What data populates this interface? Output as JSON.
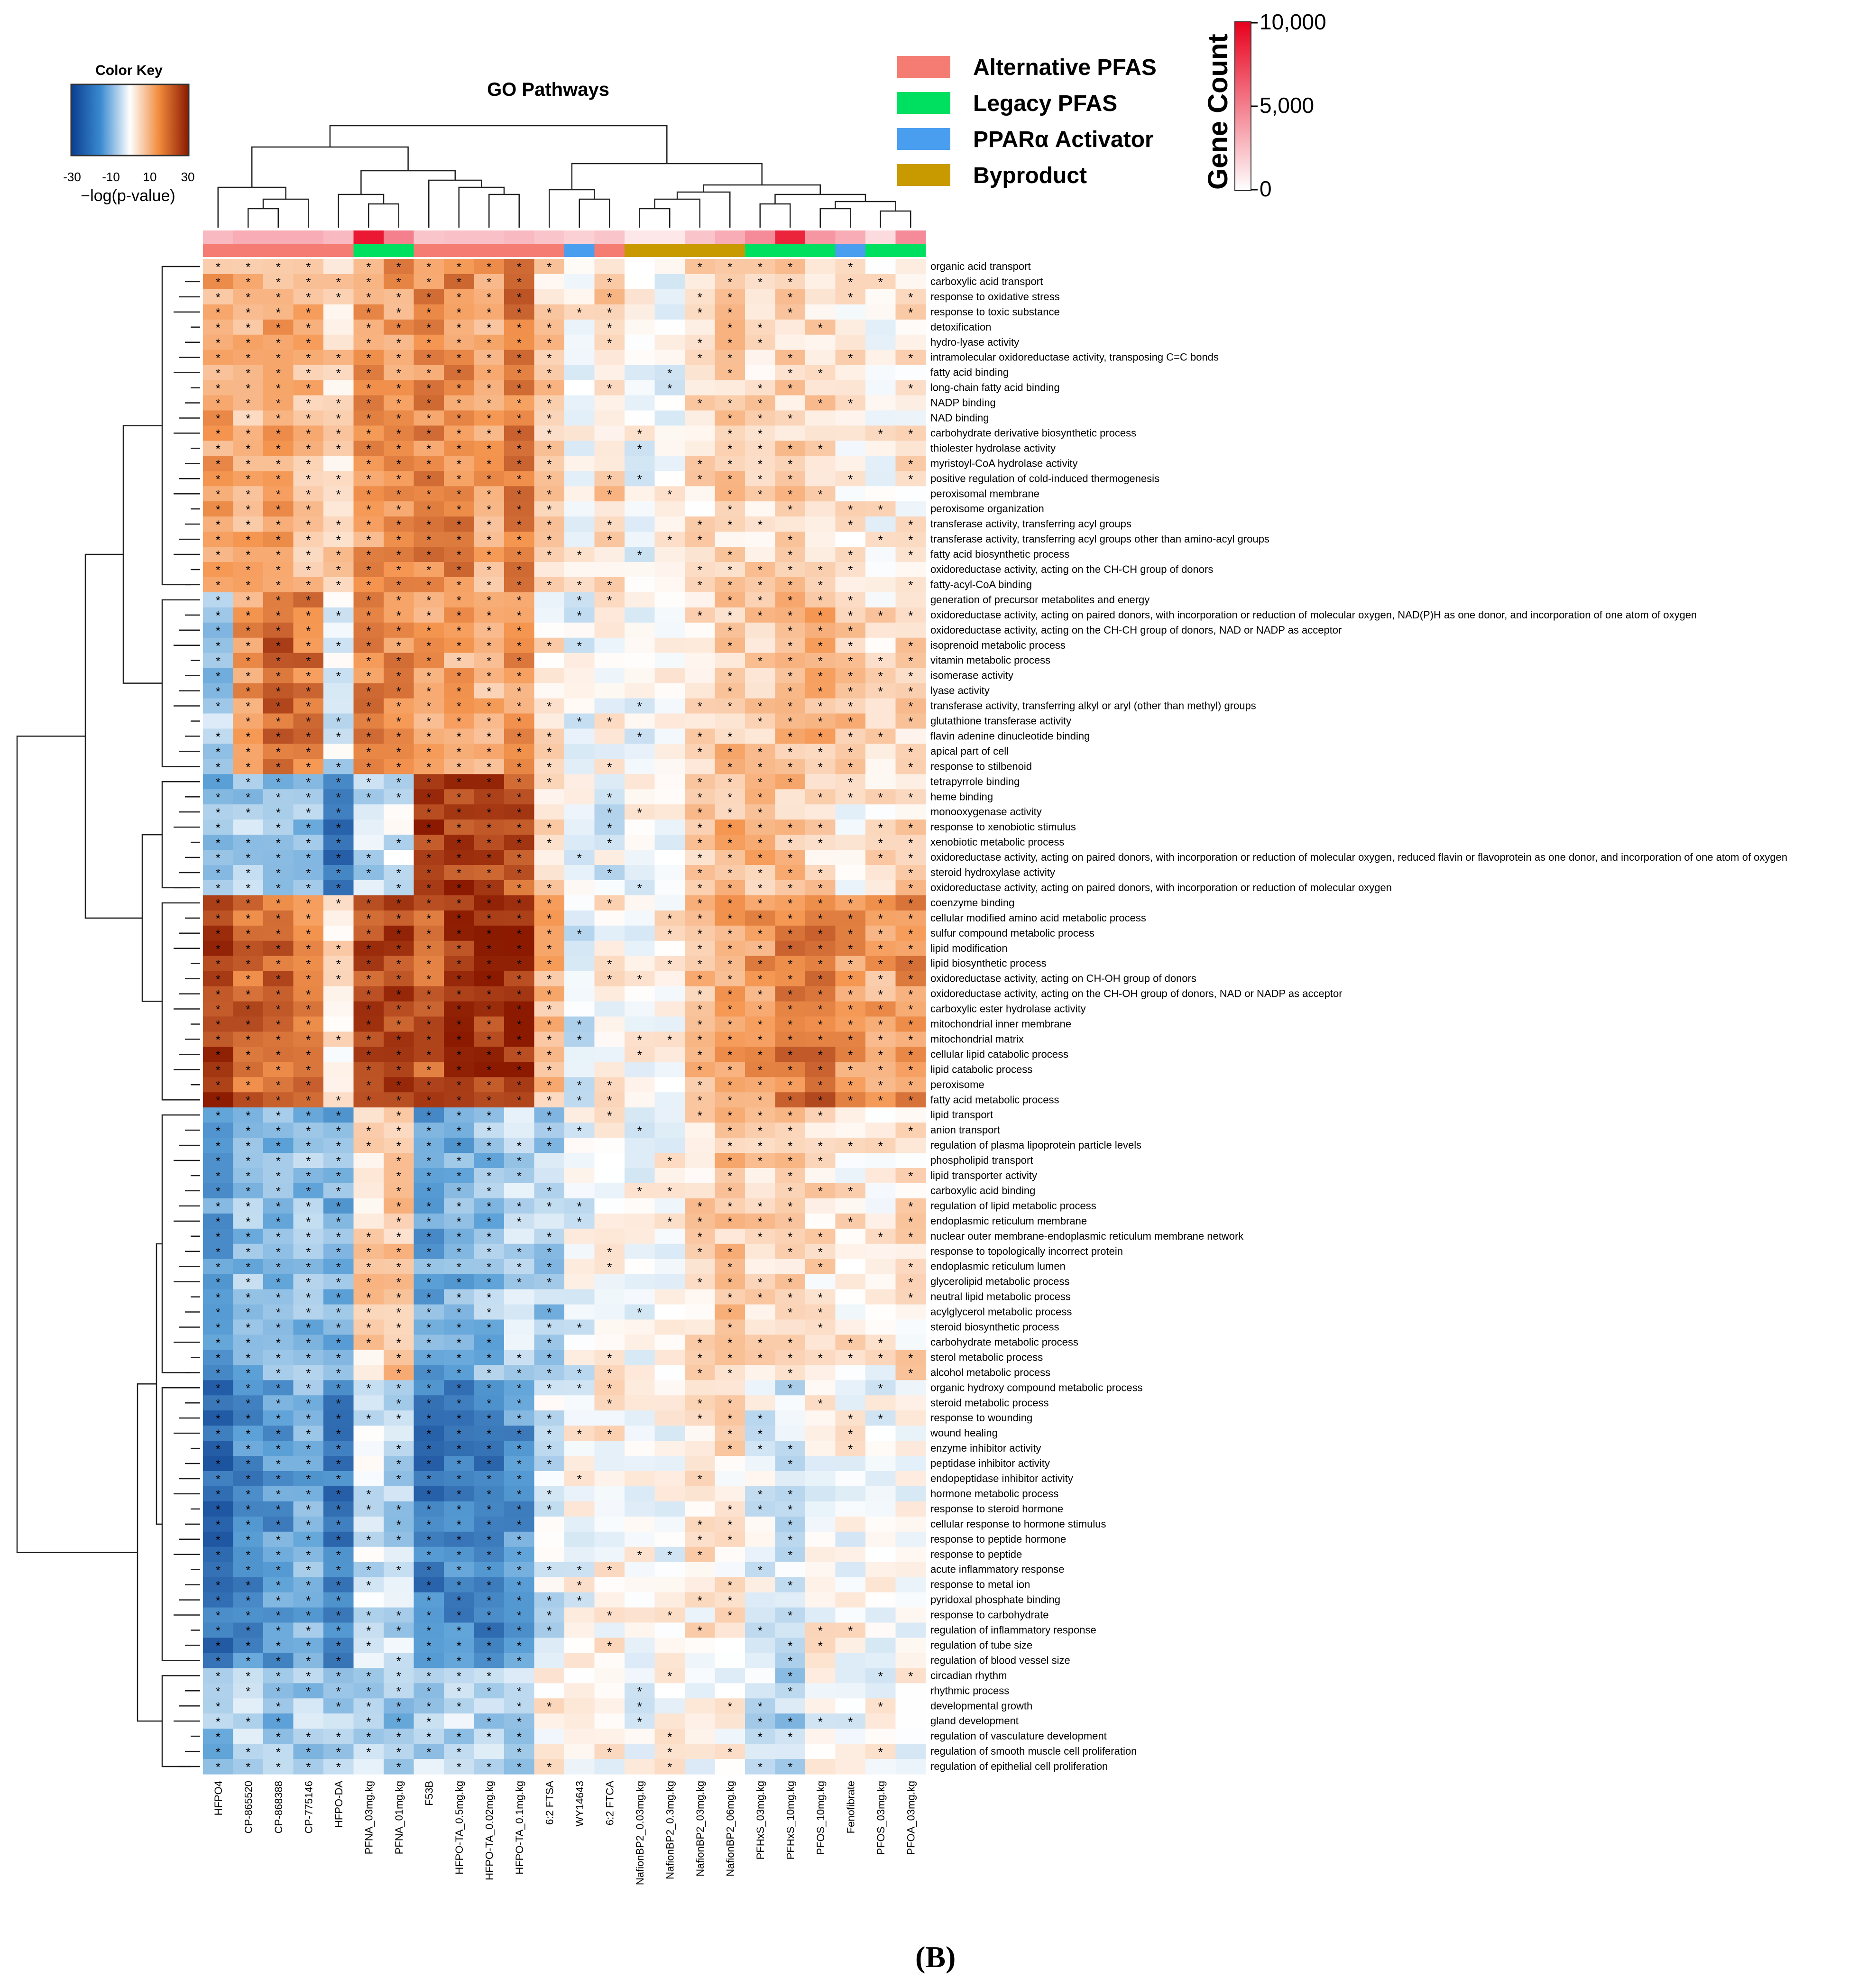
{
  "panel_label": "(B)",
  "colors": {
    "alternative_pfas": "#f47c72",
    "legacy_pfas": "#00e060",
    "ppara_activator": "#4a9ef0",
    "byproduct": "#c89a00",
    "low": "#0a3d8f",
    "high": "#8b1a00"
  },
  "chart_data": {
    "type": "heatmap",
    "title": "GO Pathways",
    "color_key": {
      "title": "Color Key",
      "label": "−log(p-value)",
      "ticks": [
        "-30",
        "-10",
        "10",
        "30"
      ],
      "range": [
        -30,
        30
      ]
    },
    "legend": [
      {
        "name": "Alternative PFAS",
        "color": "#f47c72"
      },
      {
        "name": "Legacy PFAS",
        "color": "#00e060"
      },
      {
        "name": "PPARα Activator",
        "color": "#4a9ef0"
      },
      {
        "name": "Byproduct",
        "color": "#c89a00"
      }
    ],
    "gene_count_key": {
      "title": "Gene Count",
      "ticks": [
        "10,000",
        "5,000",
        "0"
      ],
      "range": [
        0,
        10000
      ]
    },
    "columns": [
      "HFPO4",
      "CP-865520",
      "CP-868388",
      "CP-775146",
      "HFPO-DA",
      "PFNA_03mg.kg",
      "PFNA_01mg.kg",
      "F53B",
      "HFPO-TA_0.5mg.kg",
      "HFPO-TA_0.02mg.kg",
      "HFPO-TA_0.1mg.kg",
      "6:2 FTSA",
      "WY14643",
      "6:2 FTCA",
      "NafionBP2_0.03mg.kg",
      "NafionBP2_0.3mg.kg",
      "NafionBP2_03mg.kg",
      "NafionBP2_06mg.kg",
      "PFHxS_03mg.kg",
      "PFHxS_10mg.kg",
      "PFOS_10mg.kg",
      "Fenofibrate",
      "PFOS_03mg.kg",
      "PFOA_03mg.kg"
    ],
    "column_class": [
      "alt",
      "alt",
      "alt",
      "alt",
      "alt",
      "legacy",
      "legacy",
      "alt",
      "alt",
      "alt",
      "alt",
      "alt",
      "ppar",
      "alt",
      "byprod",
      "byprod",
      "byprod",
      "byprod",
      "legacy",
      "legacy",
      "legacy",
      "ppar",
      "legacy",
      "legacy"
    ],
    "column_gene_count": [
      2500,
      3000,
      3000,
      3000,
      2500,
      9500,
      5000,
      2000,
      2200,
      2200,
      2500,
      2000,
      1500,
      2000,
      500,
      500,
      2000,
      3000,
      4500,
      9000,
      4000,
      3000,
      1000,
      4500
    ],
    "rows": [
      "organic acid transport",
      "carboxylic acid transport",
      "response to oxidative stress",
      "response to toxic substance",
      "detoxification",
      "hydro-lyase activity",
      "intramolecular oxidoreductase activity, transposing C=C bonds",
      "fatty acid binding",
      "long-chain fatty acid binding",
      "NADP binding",
      "NAD binding",
      "carbohydrate derivative biosynthetic process",
      "thiolester hydrolase activity",
      "myristoyl-CoA hydrolase activity",
      "positive regulation of cold-induced thermogenesis",
      "peroxisomal membrane",
      "peroxisome organization",
      "transferase activity, transferring acyl groups",
      "transferase activity, transferring acyl groups other than amino-acyl groups",
      "fatty acid biosynthetic process",
      "oxidoreductase activity, acting on the CH-CH group of donors",
      "fatty-acyl-CoA binding",
      "generation of precursor metabolites and energy",
      "oxidoreductase activity, acting on paired donors, with incorporation or reduction of molecular oxygen, NAD(P)H as one donor, and incorporation of one atom of oxygen",
      "oxidoreductase activity, acting on the CH-CH group of donors, NAD or NADP as acceptor",
      "isoprenoid metabolic process",
      "vitamin metabolic process",
      "isomerase activity",
      "lyase activity",
      "transferase activity, transferring alkyl or aryl (other than methyl) groups",
      "glutathione transferase activity",
      "flavin adenine dinucleotide binding",
      "apical part of cell",
      "response to stilbenoid",
      "tetrapyrrole binding",
      "heme binding",
      "monooxygenase activity",
      "response to xenobiotic stimulus",
      "xenobiotic metabolic process",
      "oxidoreductase activity, acting on paired donors, with incorporation or reduction of molecular oxygen, reduced flavin or flavoprotein as one donor, and incorporation of one atom of oxygen",
      "steroid hydroxylase activity",
      "oxidoreductase activity, acting on paired donors, with incorporation or reduction of molecular oxygen",
      "coenzyme binding",
      "cellular modified amino acid metabolic process",
      "sulfur compound metabolic process",
      "lipid modification",
      "lipid biosynthetic process",
      "oxidoreductase activity, acting on CH-OH group of donors",
      "oxidoreductase activity, acting on the CH-OH group of donors, NAD or NADP as acceptor",
      "carboxylic ester hydrolase activity",
      "mitochondrial inner membrane",
      "mitochondrial matrix",
      "cellular lipid catabolic process",
      "lipid catabolic process",
      "peroxisome",
      "fatty acid metabolic process",
      "lipid transport",
      "anion transport",
      "regulation of plasma lipoprotein particle levels",
      "phospholipid transport",
      "lipid transporter activity",
      "carboxylic acid binding",
      "regulation of lipid metabolic process",
      "endoplasmic reticulum membrane",
      "nuclear outer membrane-endoplasmic reticulum membrane network",
      "response to topologically incorrect protein",
      "endoplasmic reticulum lumen",
      "glycerolipid metabolic process",
      "neutral lipid metabolic process",
      "acylglycerol metabolic process",
      "steroid biosynthetic process",
      "carbohydrate metabolic process",
      "sterol metabolic process",
      "alcohol metabolic process",
      "organic hydroxy compound metabolic process",
      "steroid metabolic process",
      "response to wounding",
      "wound healing",
      "enzyme inhibitor activity",
      "peptidase inhibitor activity",
      "endopeptidase inhibitor activity",
      "hormone metabolic process",
      "response to steroid hormone",
      "cellular response to hormone stimulus",
      "response to peptide hormone",
      "response to peptide",
      "acute inflammatory response",
      "response to metal ion",
      "pyridoxal phosphate binding",
      "response to carbohydrate",
      "regulation of inflammatory response",
      "regulation of tube size",
      "regulation of blood vessel size",
      "circadian rhythm",
      "rhythmic process",
      "developmental growth",
      "gland development",
      "regulation of vasculature development",
      "regulation of smooth muscle cell proliferation",
      "regulation of epithelial cell proliferation"
    ],
    "group_templates": {
      "G1": [
        12,
        10,
        12,
        10,
        6,
        14,
        14,
        16,
        16,
        12,
        18,
        6,
        1,
        6,
        0,
        0,
        4,
        6,
        5,
        6,
        6,
        3,
        2,
        3
      ],
      "G2": [
        -8,
        14,
        22,
        18,
        -4,
        16,
        16,
        14,
        12,
        10,
        14,
        3,
        -1,
        2,
        0,
        0,
        4,
        8,
        6,
        8,
        10,
        8,
        4,
        6
      ],
      "G3": [
        -12,
        -8,
        -10,
        -10,
        -22,
        -6,
        -4,
        26,
        26,
        24,
        22,
        4,
        -2,
        -2,
        0,
        1,
        8,
        10,
        10,
        8,
        6,
        2,
        3,
        6
      ],
      "G4": [
        26,
        20,
        20,
        18,
        4,
        24,
        24,
        22,
        26,
        26,
        28,
        10,
        -4,
        2,
        1,
        2,
        10,
        12,
        14,
        18,
        20,
        14,
        12,
        16
      ],
      "G5": [
        -14,
        -10,
        -12,
        -10,
        -12,
        6,
        8,
        -14,
        -12,
        -10,
        -6,
        -8,
        -2,
        1,
        0,
        1,
        5,
        8,
        6,
        6,
        4,
        3,
        2,
        4
      ],
      "G6": [
        -22,
        -18,
        -16,
        -12,
        -20,
        -4,
        -6,
        -20,
        -18,
        -20,
        -16,
        -4,
        0,
        2,
        0,
        0,
        3,
        4,
        -2,
        -4,
        1,
        1,
        0,
        1
      ],
      "G7": [
        -10,
        -6,
        -10,
        -8,
        -6,
        -6,
        -10,
        -6,
        -6,
        -6,
        -6,
        3,
        0,
        2,
        0,
        0,
        0,
        2,
        -4,
        -8,
        0,
        0,
        0,
        0
      ]
    },
    "row_groups": [
      "G1",
      "G1",
      "G1",
      "G1",
      "G1",
      "G1",
      "G1",
      "G1",
      "G1",
      "G1",
      "G1",
      "G1",
      "G1",
      "G1",
      "G1",
      "G1",
      "G1",
      "G1",
      "G1",
      "G1",
      "G1",
      "G1",
      "G2",
      "G2",
      "G2",
      "G2",
      "G2",
      "G2",
      "G2",
      "G2",
      "G2",
      "G2",
      "G2",
      "G2",
      "G3",
      "G3",
      "G3",
      "G3",
      "G3",
      "G3",
      "G3",
      "G3",
      "G4",
      "G4",
      "G4",
      "G4",
      "G4",
      "G4",
      "G4",
      "G4",
      "G4",
      "G4",
      "G4",
      "G4",
      "G4",
      "G4",
      "G5",
      "G5",
      "G5",
      "G5",
      "G5",
      "G5",
      "G5",
      "G5",
      "G5",
      "G5",
      "G5",
      "G5",
      "G5",
      "G5",
      "G5",
      "G5",
      "G5",
      "G5",
      "G6",
      "G6",
      "G6",
      "G6",
      "G6",
      "G6",
      "G6",
      "G6",
      "G6",
      "G6",
      "G6",
      "G6",
      "G6",
      "G6",
      "G6",
      "G6",
      "G6",
      "G6",
      "G6",
      "G7",
      "G7",
      "G7",
      "G7",
      "G7",
      "G7",
      "G7",
      "G7"
    ],
    "significance_threshold": 4,
    "significance_marker": "*"
  }
}
